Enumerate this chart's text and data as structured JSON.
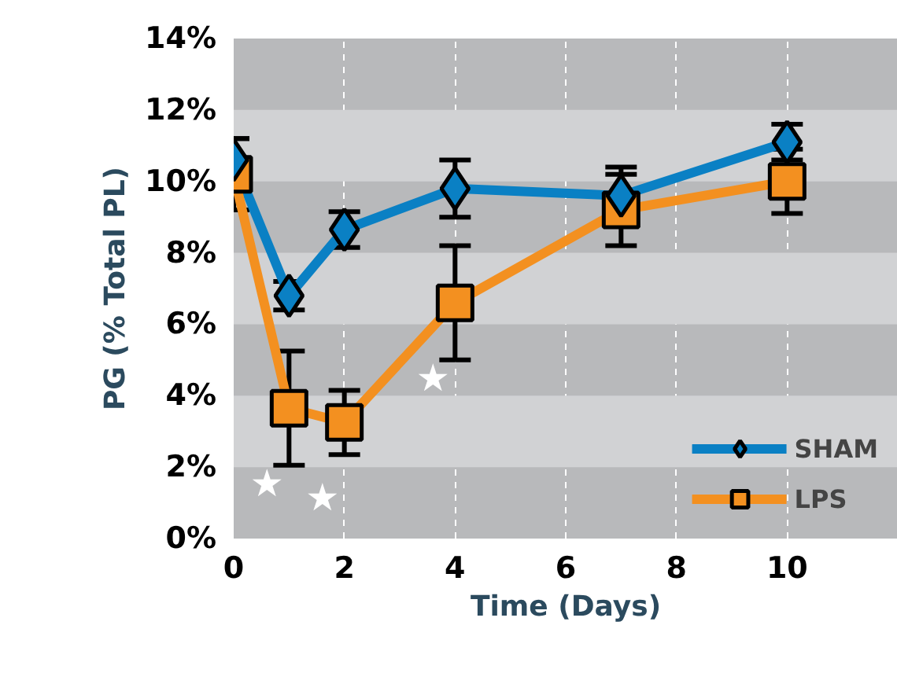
{
  "chart_data": {
    "type": "line",
    "xlabel": "Time (Days)",
    "ylabel": "PG (% Total PL)",
    "x": [
      0,
      1,
      2,
      4,
      7,
      10
    ],
    "series": [
      {
        "name": "SHAM",
        "color": "#0a80c4",
        "marker": "diamond",
        "values": [
          10.6,
          6.8,
          8.65,
          9.8,
          9.6,
          11.1
        ],
        "errors": [
          0.6,
          0.4,
          0.5,
          0.8,
          0.8,
          0.5
        ]
      },
      {
        "name": "LPS",
        "color": "#f39020",
        "marker": "square",
        "values": [
          10.2,
          3.65,
          3.25,
          6.6,
          9.2,
          10.0
        ],
        "errors": [
          1.0,
          1.6,
          0.9,
          1.6,
          1.0,
          0.9
        ]
      }
    ],
    "xlim": [
      0,
      12
    ],
    "xticks": [
      0,
      2,
      4,
      6,
      8,
      10
    ],
    "ylim": [
      0,
      14
    ],
    "yticks": [
      {
        "value": 0,
        "label": "0%"
      },
      {
        "value": 2,
        "label": "2%"
      },
      {
        "value": 4,
        "label": "4%"
      },
      {
        "value": 6,
        "label": "6%"
      },
      {
        "value": 8,
        "label": "8%"
      },
      {
        "value": 10,
        "label": "10%"
      },
      {
        "value": 12,
        "label": "12%"
      },
      {
        "value": 14,
        "label": "14%"
      }
    ],
    "annotations": [
      {
        "text": "★",
        "x": 1,
        "y": 3.65
      },
      {
        "text": "★",
        "x": 2,
        "y": 3.25
      },
      {
        "text": "★",
        "x": 4,
        "y": 6.6
      }
    ],
    "grid": true,
    "legend": "bottom right",
    "line_style": "solid"
  }
}
